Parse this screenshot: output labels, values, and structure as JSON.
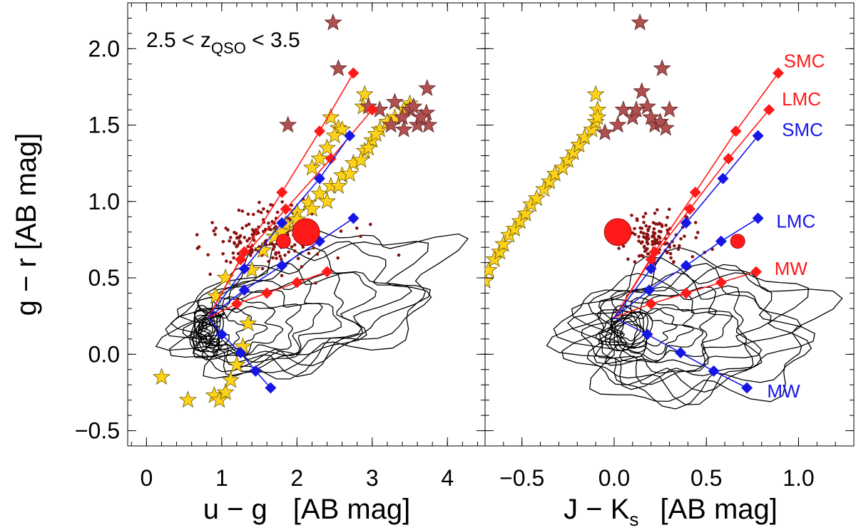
{
  "chart_data": {
    "type": "scatter",
    "colors": {
      "red": "#ff1a1a",
      "blue": "#1515e6",
      "star_yellow": "#ffd21a",
      "star_brown": "#b05050",
      "dot_maroon": "#8b1010",
      "contour": "#000000"
    },
    "annotation": {
      "text": "2.5 < z",
      "sub": "QSO",
      "tail": " < 3.5"
    },
    "panels": [
      {
        "id": "left",
        "xlim": [
          -0.25,
          4.5
        ],
        "ylim": [
          -0.6,
          2.3
        ],
        "xticks": [
          0,
          1,
          2,
          3,
          4
        ],
        "xtick_labels": [
          "0",
          "1",
          "2",
          "3",
          "4"
        ],
        "yticks": [
          -0.5,
          0.0,
          0.5,
          1.0,
          1.5,
          2.0
        ],
        "ytick_labels": [
          "−0.5",
          "0.0",
          "0.5",
          "1.0",
          "1.5",
          "2.0"
        ],
        "xlabel": {
          "main": "u − g",
          "sub": "",
          "units": "[AB mag]"
        },
        "ylabel": "g − r    [AB mag]",
        "origin": [
          0.82,
          0.24
        ],
        "tracks": [
          {
            "name": "SMC",
            "color": "red",
            "points": [
              [
                1.3,
                0.67
              ],
              [
                1.8,
                1.06
              ],
              [
                2.3,
                1.46
              ],
              [
                2.75,
                1.84
              ]
            ]
          },
          {
            "name": "LMC",
            "color": "red",
            "points": [
              [
                1.25,
                0.62
              ],
              [
                1.85,
                0.95
              ],
              [
                2.45,
                1.28
              ],
              [
                3.0,
                1.6
              ]
            ]
          },
          {
            "name": "SMC",
            "color": "blue",
            "points": [
              [
                1.3,
                0.56
              ],
              [
                1.8,
                0.86
              ],
              [
                2.3,
                1.15
              ],
              [
                2.7,
                1.43
              ]
            ]
          },
          {
            "name": "LMC",
            "color": "blue",
            "points": [
              [
                1.3,
                0.42
              ],
              [
                1.8,
                0.58
              ],
              [
                2.3,
                0.74
              ],
              [
                2.75,
                0.89
              ]
            ]
          },
          {
            "name": "MW",
            "color": "red",
            "points": [
              [
                1.2,
                0.33
              ],
              [
                1.6,
                0.4
              ],
              [
                2.0,
                0.47
              ],
              [
                2.4,
                0.54
              ]
            ]
          },
          {
            "name": "MW",
            "color": "blue",
            "points": [
              [
                1.0,
                0.13
              ],
              [
                1.25,
                0.01
              ],
              [
                1.45,
                -0.11
              ],
              [
                1.65,
                -0.22
              ]
            ]
          }
        ],
        "big_points": [
          {
            "x": 2.12,
            "y": 0.8,
            "r": 19
          },
          {
            "x": 1.82,
            "y": 0.74,
            "r": 10
          }
        ],
        "track_labels": [],
        "sequence_model": {
          "stars_yellow": "left"
        }
      },
      {
        "id": "right",
        "xlim": [
          -0.7,
          1.3
        ],
        "ylim": [
          -0.6,
          2.3
        ],
        "xticks": [
          -0.5,
          0.0,
          0.5,
          1.0
        ],
        "xtick_labels": [
          "−0.5",
          "0.0",
          "0.5",
          "1.0"
        ],
        "yticks": [
          -0.5,
          0.0,
          0.5,
          1.0,
          1.5,
          2.0
        ],
        "ytick_labels": [],
        "xlabel": {
          "main": "J − K",
          "sub": "s",
          "units": "[AB mag]"
        },
        "ylabel": "",
        "origin": [
          0.0,
          0.24
        ],
        "tracks": [
          {
            "name": "SMC",
            "color": "red",
            "points": [
              [
                0.22,
                0.67
              ],
              [
                0.44,
                1.06
              ],
              [
                0.66,
                1.46
              ],
              [
                0.89,
                1.84
              ]
            ]
          },
          {
            "name": "LMC",
            "color": "red",
            "points": [
              [
                0.2,
                0.62
              ],
              [
                0.41,
                0.95
              ],
              [
                0.62,
                1.28
              ],
              [
                0.84,
                1.6
              ]
            ]
          },
          {
            "name": "SMC",
            "color": "blue",
            "points": [
              [
                0.2,
                0.56
              ],
              [
                0.39,
                0.86
              ],
              [
                0.59,
                1.15
              ],
              [
                0.78,
                1.43
              ]
            ]
          },
          {
            "name": "LMC",
            "color": "blue",
            "points": [
              [
                0.19,
                0.42
              ],
              [
                0.39,
                0.58
              ],
              [
                0.58,
                0.74
              ],
              [
                0.78,
                0.89
              ]
            ]
          },
          {
            "name": "MW",
            "color": "red",
            "points": [
              [
                0.2,
                0.33
              ],
              [
                0.39,
                0.4
              ],
              [
                0.58,
                0.47
              ],
              [
                0.77,
                0.54
              ]
            ]
          },
          {
            "name": "MW",
            "color": "blue",
            "points": [
              [
                0.18,
                0.13
              ],
              [
                0.36,
                0.01
              ],
              [
                0.54,
                -0.11
              ],
              [
                0.72,
                -0.22
              ]
            ]
          }
        ],
        "big_points": [
          {
            "x": 0.02,
            "y": 0.8,
            "r": 19
          },
          {
            "x": 0.67,
            "y": 0.74,
            "r": 10
          }
        ],
        "track_labels": [
          {
            "text": "SMC",
            "color": "red",
            "x": 0.85,
            "y": 1.92
          },
          {
            "text": "LMC",
            "color": "red",
            "x": 0.84,
            "y": 1.67
          },
          {
            "text": "SMC",
            "color": "blue",
            "x": 0.84,
            "y": 1.47
          },
          {
            "text": "LMC",
            "color": "blue",
            "x": 0.81,
            "y": 0.87
          },
          {
            "text": "MW",
            "color": "red",
            "x": 0.8,
            "y": 0.56
          },
          {
            "text": "MW",
            "color": "blue",
            "x": 0.76,
            "y": -0.24
          }
        ]
      }
    ],
    "stars_yellow_left": [
      [
        0.2,
        -0.15
      ],
      [
        0.55,
        -0.3
      ],
      [
        0.9,
        -0.27
      ],
      [
        0.97,
        -0.3
      ],
      [
        1.05,
        -0.25
      ],
      [
        1.12,
        -0.17
      ],
      [
        1.2,
        -0.07
      ],
      [
        1.28,
        0.05
      ],
      [
        1.35,
        0.2
      ],
      [
        0.92,
        0.38
      ],
      [
        1.05,
        0.5
      ],
      [
        1.4,
        0.55
      ],
      [
        1.55,
        0.68
      ],
      [
        1.7,
        0.77
      ],
      [
        1.85,
        0.85
      ],
      [
        2.0,
        0.93
      ],
      [
        2.15,
        0.99
      ],
      [
        2.3,
        1.05
      ],
      [
        2.45,
        1.1
      ],
      [
        2.6,
        1.17
      ],
      [
        2.75,
        1.25
      ],
      [
        2.9,
        1.33
      ],
      [
        3.0,
        1.4
      ],
      [
        3.1,
        1.47
      ],
      [
        3.2,
        1.52
      ],
      [
        3.3,
        1.55
      ],
      [
        3.42,
        1.6
      ],
      [
        3.5,
        1.64
      ],
      [
        2.0,
        0.82
      ],
      [
        2.2,
        0.95
      ],
      [
        2.4,
        1.0
      ],
      [
        2.55,
        1.1
      ],
      [
        2.7,
        1.18
      ],
      [
        2.85,
        1.27
      ],
      [
        2.95,
        1.35
      ],
      [
        3.05,
        1.44
      ],
      [
        2.2,
        1.22
      ],
      [
        2.4,
        1.35
      ],
      [
        2.55,
        1.48
      ],
      [
        2.45,
        1.55
      ],
      [
        2.3,
        1.28
      ],
      [
        2.9,
        1.7
      ],
      [
        2.88,
        1.62
      ],
      [
        2.6,
        1.47
      ],
      [
        2.5,
        1.43
      ],
      [
        1.8,
        0.8
      ],
      [
        2.0,
        0.88
      ]
    ],
    "stars_yellow_right": [
      [
        -0.7,
        0.48
      ],
      [
        -0.68,
        0.55
      ],
      [
        -0.65,
        0.62
      ],
      [
        -0.62,
        0.67
      ],
      [
        -0.6,
        0.72
      ],
      [
        -0.57,
        0.78
      ],
      [
        -0.54,
        0.82
      ],
      [
        -0.51,
        0.87
      ],
      [
        -0.48,
        0.92
      ],
      [
        -0.45,
        0.98
      ],
      [
        -0.42,
        1.02
      ],
      [
        -0.38,
        1.08
      ],
      [
        -0.35,
        1.13
      ],
      [
        -0.32,
        1.18
      ],
      [
        -0.28,
        1.22
      ],
      [
        -0.25,
        1.27
      ],
      [
        -0.22,
        1.32
      ],
      [
        -0.19,
        1.37
      ],
      [
        -0.16,
        1.42
      ],
      [
        -0.12,
        1.47
      ],
      [
        -0.1,
        1.52
      ],
      [
        -0.09,
        1.6
      ],
      [
        -0.1,
        1.7
      ],
      [
        -0.09,
        1.55
      ]
    ],
    "stars_brown_left": [
      [
        2.48,
        2.17
      ],
      [
        2.55,
        1.87
      ],
      [
        1.88,
        1.5
      ],
      [
        3.5,
        1.6
      ],
      [
        3.6,
        1.5
      ],
      [
        3.75,
        1.5
      ],
      [
        3.72,
        1.58
      ],
      [
        3.73,
        1.74
      ],
      [
        3.4,
        1.55
      ],
      [
        3.3,
        1.65
      ],
      [
        3.1,
        1.6
      ],
      [
        3.55,
        1.62
      ],
      [
        3.42,
        1.47
      ],
      [
        3.25,
        1.5
      ],
      [
        3.65,
        1.55
      ],
      [
        2.95,
        1.62
      ]
    ],
    "stars_brown_right": [
      [
        0.14,
        2.17
      ],
      [
        0.26,
        1.87
      ],
      [
        0.15,
        1.72
      ],
      [
        0.05,
        1.6
      ],
      [
        0.18,
        1.62
      ],
      [
        0.22,
        1.5
      ],
      [
        0.25,
        1.52
      ],
      [
        0.3,
        1.6
      ],
      [
        0.02,
        1.5
      ],
      [
        0.1,
        1.55
      ],
      [
        0.2,
        1.55
      ],
      [
        -0.05,
        1.45
      ],
      [
        0.28,
        1.48
      ],
      [
        0.12,
        1.6
      ]
    ],
    "dots_left_count": 180,
    "dots_right_count": 120
  }
}
